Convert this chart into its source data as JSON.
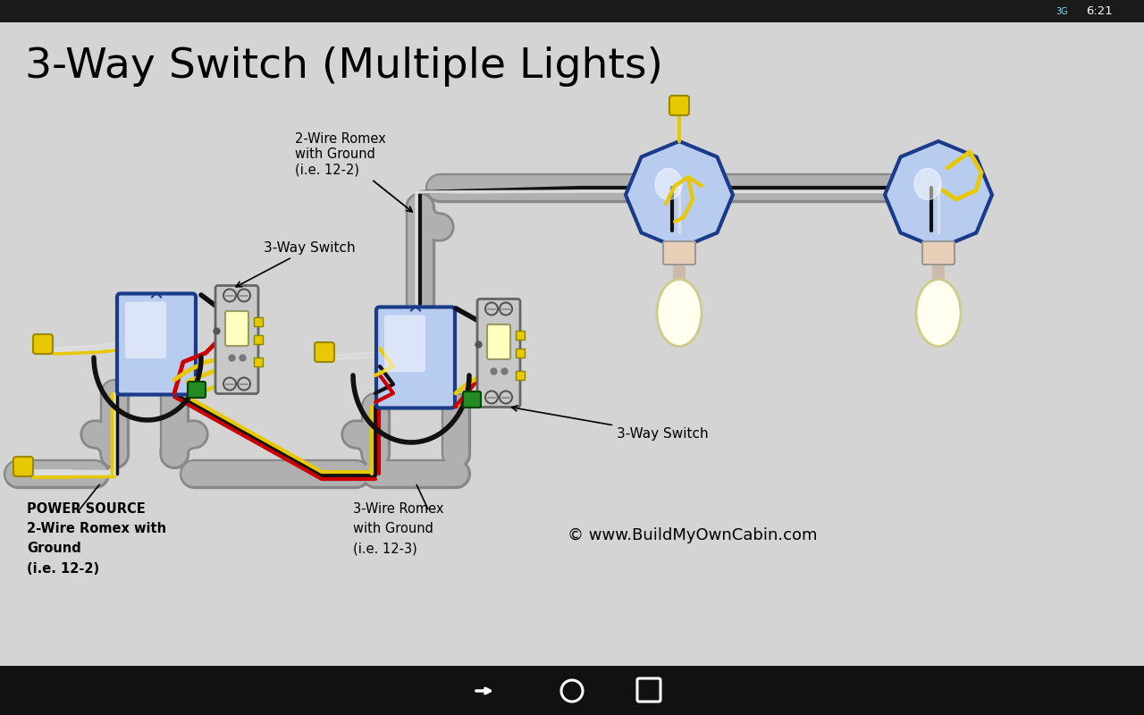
{
  "title": "3-Way Switch (Multiple Lights)",
  "bg_color": "#d4d4d4",
  "bottom_bar_color": "#111111",
  "copyright": "© www.BuildMyOwnCabin.com",
  "label_power": "POWER SOURCE\n2-Wire Romex with\nGround\n(i.e. 12-2)",
  "label_romex_top": "2-Wire Romex\nwith Ground\n(i.e. 12-2)",
  "label_romex_bottom": "3-Wire Romex\nwith Ground\n(i.e. 12-3)",
  "label_switch1": "3-Way Switch",
  "label_switch2": "3-Way Switch",
  "wire_black": "#111111",
  "wire_red": "#cc0000",
  "wire_white": "#dddddd",
  "wire_yellow": "#e8c800",
  "wire_green": "#228B22",
  "conduit_color": "#b0b0b0",
  "conduit_edge": "#888888",
  "switch_box_color": "#1a3a8a",
  "switch_box_face": "#b8ccf0",
  "switch_body_color": "#c8c8c8",
  "switch_toggle_color": "#ffffc0",
  "light_fixture_color": "#1a3a8a",
  "light_fixture_face": "#b8ccf0",
  "light_bulb_color": "#fffff0",
  "light_base_color": "#e8d0b8"
}
